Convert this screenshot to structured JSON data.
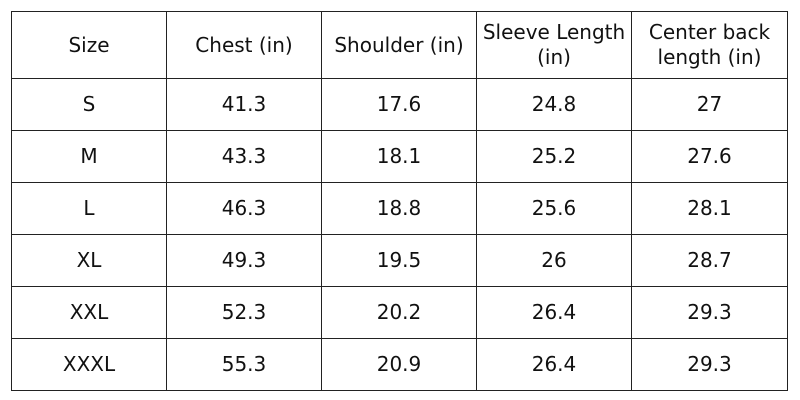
{
  "table": {
    "headers": [
      "Size",
      "Chest (in)",
      "Shoulder (in)",
      "Sleeve Length (in)",
      "Center back length (in)"
    ],
    "rows": [
      [
        "S",
        "41.3",
        "17.6",
        "24.8",
        "27"
      ],
      [
        "M",
        "43.3",
        "18.1",
        "25.2",
        "27.6"
      ],
      [
        "L",
        "46.3",
        "18.8",
        "25.6",
        "28.1"
      ],
      [
        "XL",
        "49.3",
        "19.5",
        "26",
        "28.7"
      ],
      [
        "XXL",
        "52.3",
        "20.2",
        "26.4",
        "29.3"
      ],
      [
        "XXXL",
        "55.3",
        "20.9",
        "26.4",
        "29.3"
      ]
    ]
  }
}
